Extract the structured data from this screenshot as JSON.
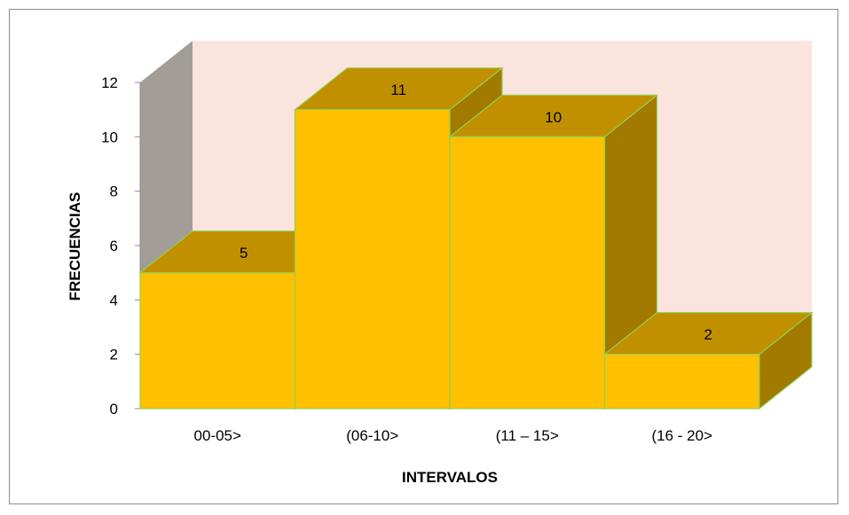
{
  "chart_data": {
    "type": "bar",
    "style": "3d-column",
    "categories": [
      "00-05>",
      "(06-10>",
      "(11 – 15>",
      "(16 - 20>"
    ],
    "values": [
      5,
      11,
      10,
      2
    ],
    "data_labels": [
      "5",
      "11",
      "10",
      "2"
    ],
    "xlabel": "INTERVALOS",
    "ylabel": "FRECUENCIAS",
    "ylim": [
      0,
      12
    ],
    "yticks": [
      "0",
      "2",
      "4",
      "6",
      "8",
      "10",
      "12"
    ],
    "grid": false,
    "legend": "none"
  },
  "colors": {
    "bar_front": "#FFC000",
    "bar_top": "#C09000",
    "bar_side": "#A27A00",
    "bar_edge": "#92D050",
    "back_wall": "#FBE4DE",
    "side_wall": "#A29D97"
  }
}
